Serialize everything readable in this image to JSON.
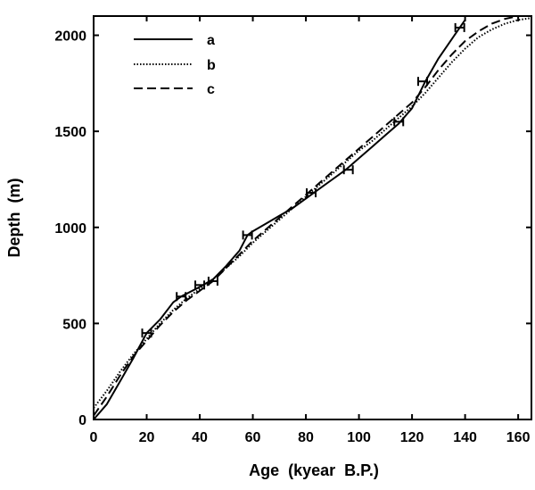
{
  "chart_data": {
    "type": "line",
    "title": "",
    "xlabel": "Age  (kyear  B.P.)",
    "ylabel": "Depth  (m)",
    "xlim": [
      0,
      165
    ],
    "ylim": [
      0,
      2100
    ],
    "x_ticks": [
      0,
      20,
      40,
      60,
      80,
      100,
      120,
      140,
      160
    ],
    "y_ticks": [
      0,
      500,
      1000,
      1500,
      2000
    ],
    "grid": false,
    "legend_position": "top-left",
    "series": [
      {
        "name": "a",
        "style": "solid",
        "points": [
          [
            0,
            0
          ],
          [
            5,
            80
          ],
          [
            10,
            200
          ],
          [
            15,
            320
          ],
          [
            20,
            450
          ],
          [
            25,
            520
          ],
          [
            30,
            610
          ],
          [
            33,
            640
          ],
          [
            40,
            690
          ],
          [
            45,
            730
          ],
          [
            50,
            800
          ],
          [
            55,
            880
          ],
          [
            58,
            960
          ],
          [
            60,
            980
          ],
          [
            65,
            1020
          ],
          [
            70,
            1060
          ],
          [
            75,
            1100
          ],
          [
            80,
            1150
          ],
          [
            85,
            1200
          ],
          [
            90,
            1250
          ],
          [
            95,
            1300
          ],
          [
            100,
            1360
          ],
          [
            105,
            1420
          ],
          [
            110,
            1480
          ],
          [
            115,
            1540
          ],
          [
            120,
            1620
          ],
          [
            125,
            1760
          ],
          [
            130,
            1880
          ],
          [
            135,
            1980
          ],
          [
            140,
            2080
          ]
        ]
      },
      {
        "name": "b",
        "style": "dotted",
        "points": [
          [
            0,
            60
          ],
          [
            5,
            150
          ],
          [
            10,
            250
          ],
          [
            15,
            340
          ],
          [
            20,
            420
          ],
          [
            25,
            500
          ],
          [
            30,
            570
          ],
          [
            35,
            630
          ],
          [
            40,
            680
          ],
          [
            45,
            730
          ],
          [
            50,
            790
          ],
          [
            55,
            850
          ],
          [
            60,
            920
          ],
          [
            65,
            980
          ],
          [
            70,
            1040
          ],
          [
            75,
            1100
          ],
          [
            80,
            1160
          ],
          [
            85,
            1220
          ],
          [
            90,
            1280
          ],
          [
            95,
            1340
          ],
          [
            100,
            1400
          ],
          [
            105,
            1450
          ],
          [
            110,
            1510
          ],
          [
            115,
            1570
          ],
          [
            120,
            1630
          ],
          [
            125,
            1700
          ],
          [
            130,
            1780
          ],
          [
            135,
            1860
          ],
          [
            140,
            1930
          ],
          [
            145,
            1990
          ],
          [
            150,
            2030
          ],
          [
            155,
            2060
          ],
          [
            160,
            2080
          ],
          [
            165,
            2090
          ]
        ]
      },
      {
        "name": "c",
        "style": "dashed",
        "points": [
          [
            0,
            20
          ],
          [
            5,
            120
          ],
          [
            10,
            230
          ],
          [
            15,
            330
          ],
          [
            20,
            410
          ],
          [
            25,
            490
          ],
          [
            30,
            560
          ],
          [
            35,
            620
          ],
          [
            40,
            670
          ],
          [
            45,
            720
          ],
          [
            50,
            790
          ],
          [
            55,
            860
          ],
          [
            60,
            930
          ],
          [
            65,
            990
          ],
          [
            70,
            1050
          ],
          [
            75,
            1110
          ],
          [
            80,
            1170
          ],
          [
            85,
            1230
          ],
          [
            90,
            1290
          ],
          [
            95,
            1350
          ],
          [
            100,
            1410
          ],
          [
            105,
            1470
          ],
          [
            110,
            1530
          ],
          [
            115,
            1590
          ],
          [
            120,
            1650
          ],
          [
            125,
            1730
          ],
          [
            130,
            1820
          ],
          [
            135,
            1900
          ],
          [
            140,
            1970
          ],
          [
            145,
            2020
          ],
          [
            150,
            2060
          ],
          [
            155,
            2085
          ],
          [
            160,
            2100
          ]
        ]
      }
    ],
    "markers": [
      [
        20,
        450
      ],
      [
        33,
        640
      ],
      [
        40,
        700
      ],
      [
        45,
        720
      ],
      [
        58,
        960
      ],
      [
        82,
        1180
      ],
      [
        96,
        1300
      ],
      [
        115,
        1550
      ],
      [
        124,
        1760
      ],
      [
        138,
        2040
      ]
    ]
  }
}
